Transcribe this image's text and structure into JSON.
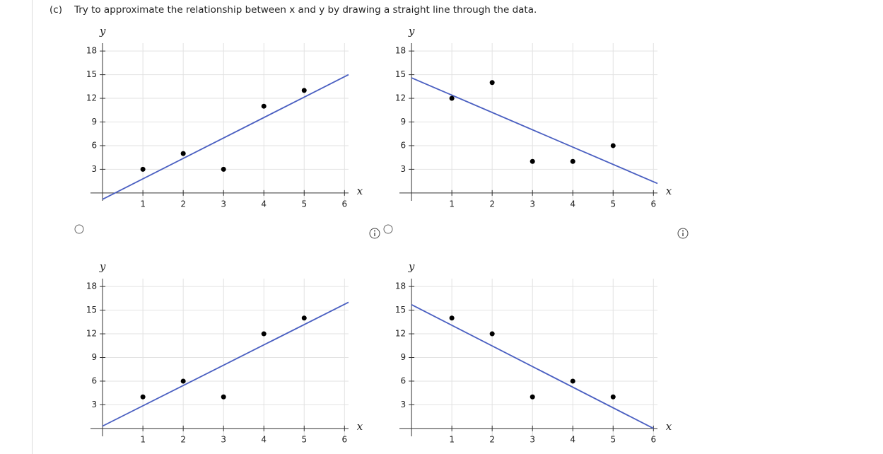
{
  "question": {
    "label": "(c)",
    "text": "Try to approximate the relationship between x and y by drawing a straight line through the data."
  },
  "chart_data": [
    {
      "type": "scatter",
      "x_label": "x",
      "y_label": "y",
      "x": [
        1,
        2,
        3,
        4,
        5
      ],
      "values": [
        3,
        5,
        3,
        11,
        13
      ],
      "color": "#000000",
      "line": {
        "x": [
          0,
          6.1
        ],
        "values": [
          -0.8,
          15
        ],
        "color": "#4a5fc1"
      },
      "xlim": [
        -0.3,
        6.1
      ],
      "ylim": [
        -1,
        19
      ],
      "xticks": [
        1,
        2,
        3,
        4,
        5,
        6
      ],
      "yticks": [
        3,
        6,
        9,
        12,
        15,
        18
      ],
      "grid": true
    },
    {
      "type": "scatter",
      "x_label": "x",
      "y_label": "y",
      "x": [
        1,
        2,
        3,
        4,
        5
      ],
      "values": [
        12,
        14,
        4,
        4,
        6
      ],
      "color": "#000000",
      "line": {
        "x": [
          0,
          6.1
        ],
        "values": [
          14.6,
          1.2
        ],
        "color": "#4a5fc1"
      },
      "xlim": [
        -0.3,
        6.1
      ],
      "ylim": [
        -1,
        19
      ],
      "xticks": [
        1,
        2,
        3,
        4,
        5,
        6
      ],
      "yticks": [
        3,
        6,
        9,
        12,
        15,
        18
      ],
      "grid": true
    },
    {
      "type": "scatter",
      "x_label": "x",
      "y_label": "y",
      "x": [
        1,
        2,
        3,
        4,
        5
      ],
      "values": [
        4,
        6,
        4,
        12,
        14
      ],
      "color": "#000000",
      "line": {
        "x": [
          0,
          6.1
        ],
        "values": [
          0.3,
          16
        ],
        "color": "#4a5fc1"
      },
      "xlim": [
        -0.3,
        6.1
      ],
      "ylim": [
        -1,
        19
      ],
      "xticks": [
        1,
        2,
        3,
        4,
        5,
        6
      ],
      "yticks": [
        3,
        6,
        9,
        12,
        15,
        18
      ],
      "grid": true
    },
    {
      "type": "scatter",
      "x_label": "x",
      "y_label": "y",
      "x": [
        1,
        2,
        3,
        4,
        5
      ],
      "values": [
        14,
        12,
        4,
        6,
        4
      ],
      "color": "#000000",
      "line": {
        "x": [
          0,
          6
        ],
        "values": [
          15.7,
          0
        ],
        "color": "#4a5fc1"
      },
      "xlim": [
        -0.3,
        6.1
      ],
      "ylim": [
        -1,
        19
      ],
      "xticks": [
        1,
        2,
        3,
        4,
        5,
        6
      ],
      "yticks": [
        3,
        6,
        9,
        12,
        15,
        18
      ],
      "grid": true
    }
  ]
}
